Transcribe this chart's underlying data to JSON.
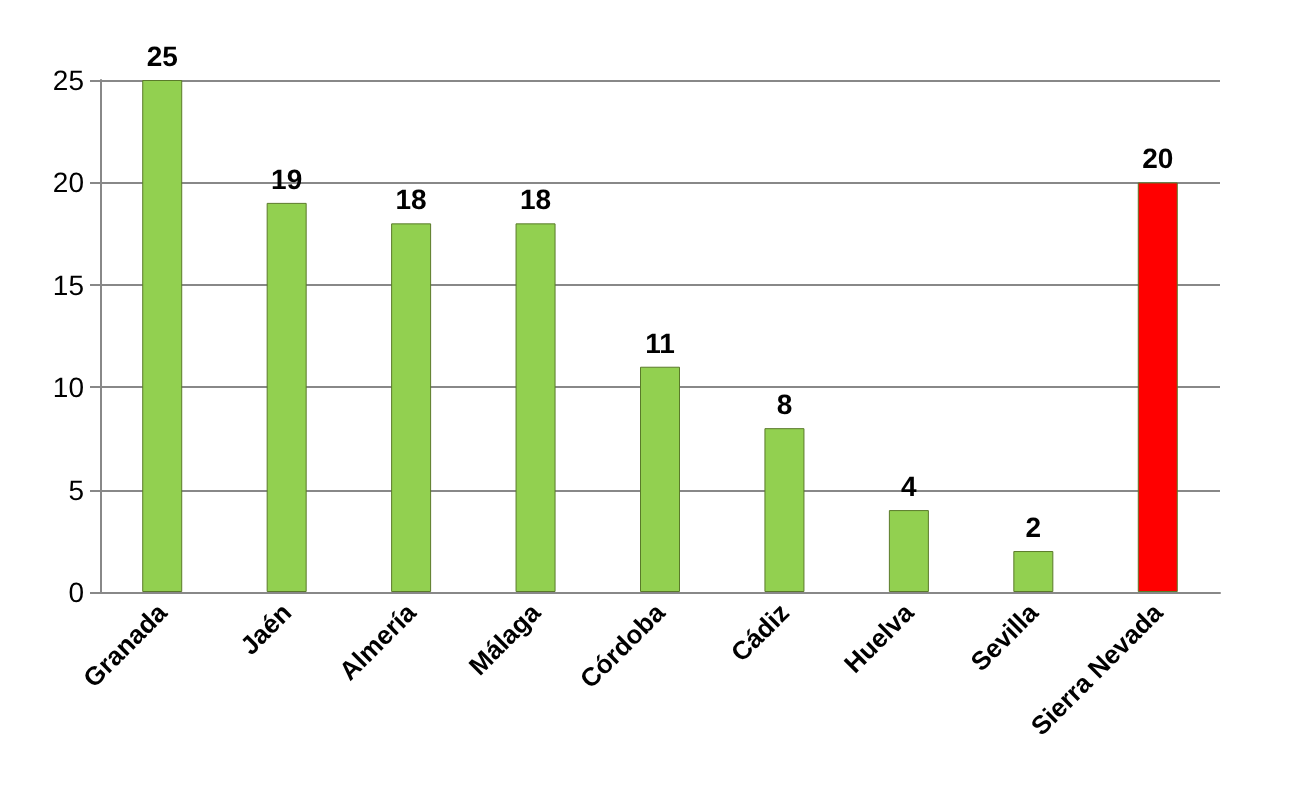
{
  "chart_data": {
    "type": "bar",
    "categories": [
      "Granada",
      "Jaén",
      "Almería",
      "Málaga",
      "Córdoba",
      "Cádiz",
      "Huelva",
      "Sevilla",
      "Sierra Nevada"
    ],
    "values": [
      25,
      19,
      18,
      18,
      11,
      8,
      4,
      2,
      20
    ],
    "colors": [
      "#92d050",
      "#92d050",
      "#92d050",
      "#92d050",
      "#92d050",
      "#92d050",
      "#92d050",
      "#92d050",
      "#ff0000"
    ],
    "ylim": [
      0,
      25
    ],
    "yticks": [
      0,
      5,
      10,
      15,
      20,
      25
    ],
    "grid": "y",
    "data_labels": true
  }
}
